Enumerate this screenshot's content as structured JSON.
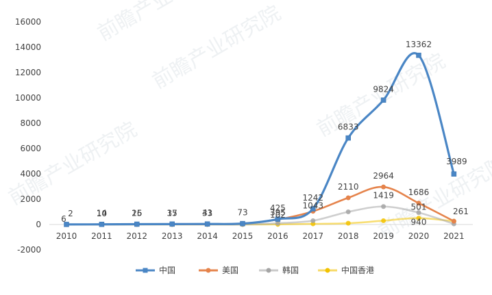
{
  "chart_data": {
    "type": "line",
    "categories": [
      "2010",
      "2011",
      "2012",
      "2013",
      "2014",
      "2015",
      "2016",
      "2017",
      "2018",
      "2019",
      "2020",
      "2021"
    ],
    "series": [
      {
        "name": "中国",
        "values": [
          6,
          14,
          26,
          35,
          41,
          73,
          425,
          1242,
          6833,
          9824,
          13362,
          3989
        ],
        "color": "#4a86c5",
        "marker": "square",
        "labeled": true
      },
      {
        "name": "美国",
        "values": [
          2,
          10,
          15,
          17,
          33,
          73,
          395,
          1043,
          2110,
          2964,
          1686,
          261
        ],
        "color": "#e5834b",
        "marker": "circle",
        "labeled": true
      },
      {
        "name": "韩国",
        "values": [
          0,
          0,
          0,
          0,
          0,
          0,
          102,
          300,
          1000,
          1419,
          940,
          50
        ],
        "color": "#a5a5a5",
        "marker": "circle",
        "labeled": false
      },
      {
        "name": "中国香港",
        "values": [
          0,
          0,
          0,
          0,
          0,
          0,
          10,
          50,
          100,
          300,
          501,
          261
        ],
        "color": "#f2c200",
        "marker": "circle",
        "labeled": false
      }
    ],
    "data_labels": [
      {
        "category": "2010",
        "value": 2,
        "text": "2"
      },
      {
        "category": "2010",
        "value": 6,
        "text": "6"
      },
      {
        "category": "2011",
        "value": 14,
        "text": "14"
      },
      {
        "category": "2011",
        "value": 10,
        "text": "10"
      },
      {
        "category": "2012",
        "value": 26,
        "text": "26"
      },
      {
        "category": "2012",
        "value": 15,
        "text": "15"
      },
      {
        "category": "2013",
        "value": 35,
        "text": "35"
      },
      {
        "category": "2013",
        "value": 17,
        "text": "17"
      },
      {
        "category": "2014",
        "value": 41,
        "text": "41"
      },
      {
        "category": "2014",
        "value": 33,
        "text": "33"
      },
      {
        "category": "2015",
        "value": 73,
        "text": "73"
      },
      {
        "category": "2016",
        "value": 425,
        "text": "425"
      },
      {
        "category": "2016",
        "value": 395,
        "text": "395"
      },
      {
        "category": "2016",
        "value": 102,
        "text": "102"
      },
      {
        "category": "2017",
        "value": 1242,
        "text": "1242"
      },
      {
        "category": "2017",
        "value": 1043,
        "text": "1043"
      },
      {
        "category": "2018",
        "value": 6833,
        "text": "6833"
      },
      {
        "category": "2018",
        "value": 2110,
        "text": "2110"
      },
      {
        "category": "2019",
        "value": 9824,
        "text": "9824"
      },
      {
        "category": "2019",
        "value": 2964,
        "text": "2964"
      },
      {
        "category": "2019",
        "value": 1419,
        "text": "1419"
      },
      {
        "category": "2020",
        "value": 13362,
        "text": "13362"
      },
      {
        "category": "2020",
        "value": 1686,
        "text": "1686"
      },
      {
        "category": "2020",
        "value": 501,
        "text": "501"
      },
      {
        "category": "2020",
        "value": 940,
        "text": "940"
      },
      {
        "category": "2021",
        "value": 3989,
        "text": "3989"
      },
      {
        "category": "2021",
        "value": 261,
        "text": "261"
      }
    ],
    "ylim": [
      -2000,
      16000
    ],
    "ytick_step": 2000,
    "xlabel": "",
    "ylabel": "",
    "grid": false,
    "legend_position": "bottom-center",
    "smooth": true
  },
  "watermark": {
    "text": "前瞻产业研究院"
  }
}
